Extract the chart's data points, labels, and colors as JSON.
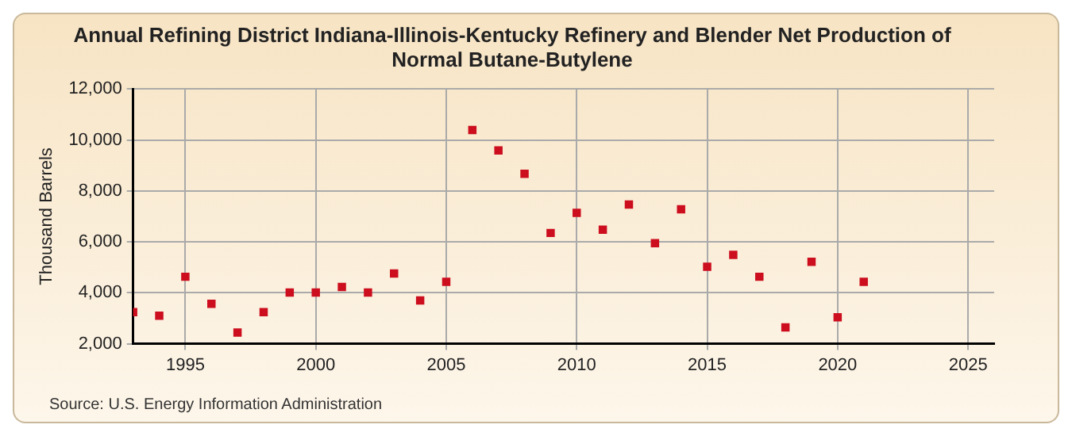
{
  "chart_data": {
    "type": "scatter",
    "title": "Annual Refining District Indiana-Illinois-Kentucky Refinery and Blender Net Production of Normal Butane-Butylene",
    "ylabel": "Thousand Barrels",
    "annotations": [
      "Source: U.S. Energy Information Administration"
    ],
    "x": [
      1993,
      1994,
      1995,
      1996,
      1997,
      1998,
      1999,
      2000,
      2001,
      2002,
      2003,
      2004,
      2005,
      2006,
      2007,
      2008,
      2009,
      2010,
      2011,
      2012,
      2013,
      2014,
      2015,
      2016,
      2017,
      2018,
      2019,
      2020,
      2021
    ],
    "values": [
      3240,
      3100,
      4630,
      3570,
      2440,
      3240,
      4010,
      4010,
      4230,
      4010,
      4760,
      3700,
      4430,
      10390,
      9590,
      8670,
      6350,
      7140,
      6480,
      7470,
      5950,
      7280,
      5020,
      5490,
      4630,
      2640,
      5220,
      3040,
      4430
    ],
    "color": "#cc0e1e",
    "marker": "square",
    "grid": true,
    "legend": false,
    "xlim": [
      1993,
      2026
    ],
    "xticks": [
      1995,
      2000,
      2005,
      2010,
      2015,
      2020,
      2025
    ],
    "ylim": [
      2000,
      12000
    ],
    "yticks": [
      {
        "value": 2000,
        "label": "2,000"
      },
      {
        "value": 4000,
        "label": "4,000"
      },
      {
        "value": 6000,
        "label": "6,000"
      },
      {
        "value": 8000,
        "label": "8,000"
      },
      {
        "value": 10000,
        "label": "10,000"
      },
      {
        "value": 12000,
        "label": "12,000"
      }
    ]
  }
}
